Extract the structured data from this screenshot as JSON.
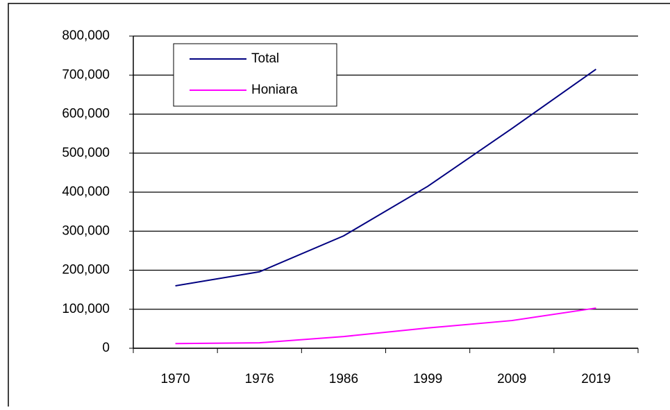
{
  "chart_data": {
    "type": "line",
    "categories": [
      "1970",
      "1976",
      "1986",
      "1999",
      "2009",
      "2019"
    ],
    "series": [
      {
        "name": "Total",
        "color": "#000080",
        "values": [
          160000,
          196000,
          288000,
          415000,
          563000,
          715000
        ]
      },
      {
        "name": "Honiara",
        "color": "#ff00ff",
        "values": [
          12000,
          14000,
          30000,
          52000,
          71000,
          103000
        ]
      }
    ],
    "ylim": [
      0,
      800000
    ],
    "yticks": [
      0,
      {
        "value": 100000,
        "label": "100,000"
      },
      {
        "value": 200000,
        "label": "200,000"
      },
      {
        "value": 300000,
        "label": "300,000"
      },
      {
        "value": 400000,
        "label": "400,000"
      },
      {
        "value": 500000,
        "label": "500,000"
      },
      {
        "value": 600000,
        "label": "600,000"
      },
      {
        "value": 700000,
        "label": "700,000"
      },
      {
        "value": 800000,
        "label": "800,000"
      }
    ],
    "grid": true,
    "legend": "upper-left"
  }
}
